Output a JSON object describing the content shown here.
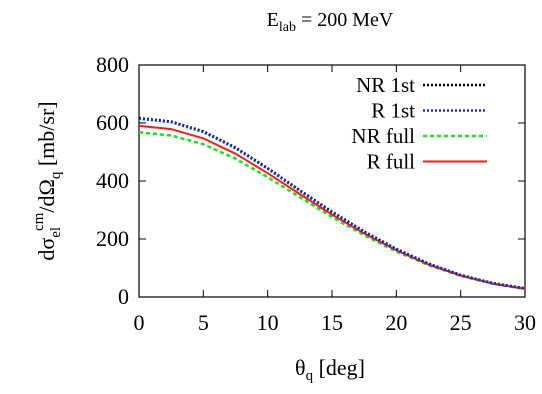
{
  "chart_data": {
    "type": "line",
    "title": {
      "main": "E",
      "sub": "lab",
      "rest": " = 200 MeV"
    },
    "xlabel": {
      "symbol": "θ",
      "sub": "q",
      "rest": " [deg]"
    },
    "ylabel": {
      "d1": "dσ",
      "sub1": "el",
      "sup1": "cm",
      "d2": "/dΩ",
      "sub2": "q",
      "rest": " [mb/sr]"
    },
    "xlim": [
      0,
      30
    ],
    "ylim": [
      0,
      800
    ],
    "xticks": [
      "0",
      "5",
      "10",
      "15",
      "20",
      "25",
      "30"
    ],
    "yticks": [
      "0",
      "200",
      "400",
      "600",
      "800"
    ],
    "grid": false,
    "legend_position": "top-right",
    "x": [
      0,
      2.5,
      5,
      7.5,
      10,
      12.5,
      15,
      17.5,
      20,
      22.5,
      25,
      27.5,
      30
    ],
    "series": [
      {
        "name": "NR 1st",
        "color": "#000000",
        "style": "dotted",
        "values": [
          617,
          605,
          571,
          515,
          444,
          368,
          294,
          226,
          166,
          115,
          76,
          48,
          30
        ]
      },
      {
        "name": "R 1st",
        "color": "#1a2fd6",
        "style": "dotted",
        "values": [
          615,
          603,
          569,
          513,
          442,
          366,
          292,
          224,
          164,
          114,
          75,
          47,
          29
        ]
      },
      {
        "name": "NR full",
        "color": "#22dd22",
        "style": "dashed",
        "values": [
          568,
          557,
          527,
          477,
          413,
          344,
          276,
          213,
          157,
          110,
          73,
          46,
          28
        ]
      },
      {
        "name": "R full",
        "color": "#e8221a",
        "style": "solid",
        "values": [
          590,
          579,
          547,
          494,
          427,
          355,
          284,
          219,
          161,
          112,
          74,
          46,
          28
        ]
      }
    ]
  }
}
